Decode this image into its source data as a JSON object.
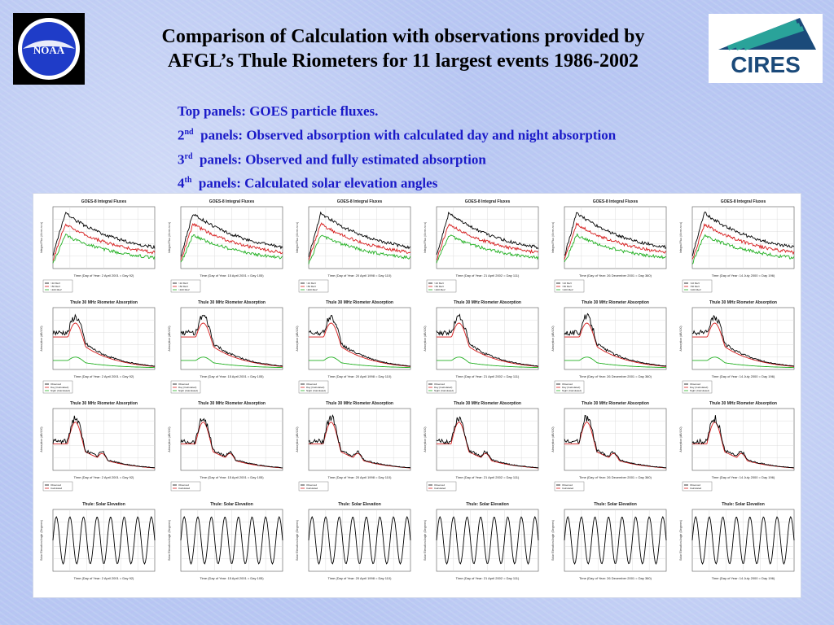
{
  "header": {
    "title_line1": "Comparison of Calculation with observations provided by",
    "title_line2": "AFGL’s Thule Riometers for 11  largest events 1986-2002"
  },
  "legend": {
    "line1": "Top panels: GOES particle fluxes.",
    "line2_num": "2",
    "line2_sup": "nd",
    "line2_text": "  panels: Observed absorption with calculated day and night absorption",
    "line3_num": "3",
    "line3_sup": "rd",
    "line3_text": "  panels: Observed and fully estimated absorption",
    "line4_num": "4",
    "line4_sup": "th",
    "line4_text": "  panels: Calculated solar elevation angles"
  },
  "logos": {
    "left": "NOAA",
    "right": "CIRES"
  },
  "colors": {
    "observed": "#000000",
    "day_calc": "#d61a1a",
    "night_calc": "#22b022",
    "legend_text": "#1a1ac8",
    "cires_text": "#1b4a7a",
    "cires_stripe": "#2aa39a"
  },
  "rows": [
    {
      "row_title": "GOES-8  Integral Fluxes",
      "kind": "goes"
    },
    {
      "row_title": "Thule 30 MHz Riometer Absorption",
      "kind": "absorption_dn"
    },
    {
      "row_title": "Thule 30 MHz Riometer Absorption",
      "kind": "absorption_full"
    },
    {
      "row_title": "Thule:  Solar Elevation",
      "kind": "solar"
    }
  ],
  "events": [
    {
      "time_label": "Time  (Day of Year:  2 April 2001 = Day 92)"
    },
    {
      "time_label": "Time  (Day of Year:  15 April 2001 = Day 105)"
    },
    {
      "time_label": "Time  (Day of Year:  20 April 1998 = Day 110)"
    },
    {
      "time_label": "Time  (Day of Year:  21 April 2002 = Day 111)"
    },
    {
      "time_label": "Time  (Day of Year:  26 December 2001 = Day 360)"
    },
    {
      "time_label": "Time  (Day of Year:  14 July 2000 = Day 196)"
    }
  ],
  "chart_data": [
    {
      "type": "line",
      "title": "GOES-8  Integral Fluxes",
      "ylabel": "Integral Flux (#/cm²-sr-s)",
      "legend": [
        ">10 MeV",
        ">50 MeV",
        ">100 MeV"
      ]
    },
    {
      "type": "line",
      "title": "Thule 30 MHz Riometer Absorption",
      "ylabel": "Absorption (dB/100)",
      "legend": [
        "Observed",
        "Day (Calculated)",
        "Night (Calculated)"
      ]
    },
    {
      "type": "line",
      "title": "Thule 30 MHz Riometer Absorption",
      "ylabel": "Absorption (dB/100)",
      "legend": [
        "Observed",
        "Calculated"
      ]
    },
    {
      "type": "line",
      "title": "Thule:  Solar Elevation",
      "ylabel": "Solar Elevation Angle (Degrees)"
    }
  ]
}
